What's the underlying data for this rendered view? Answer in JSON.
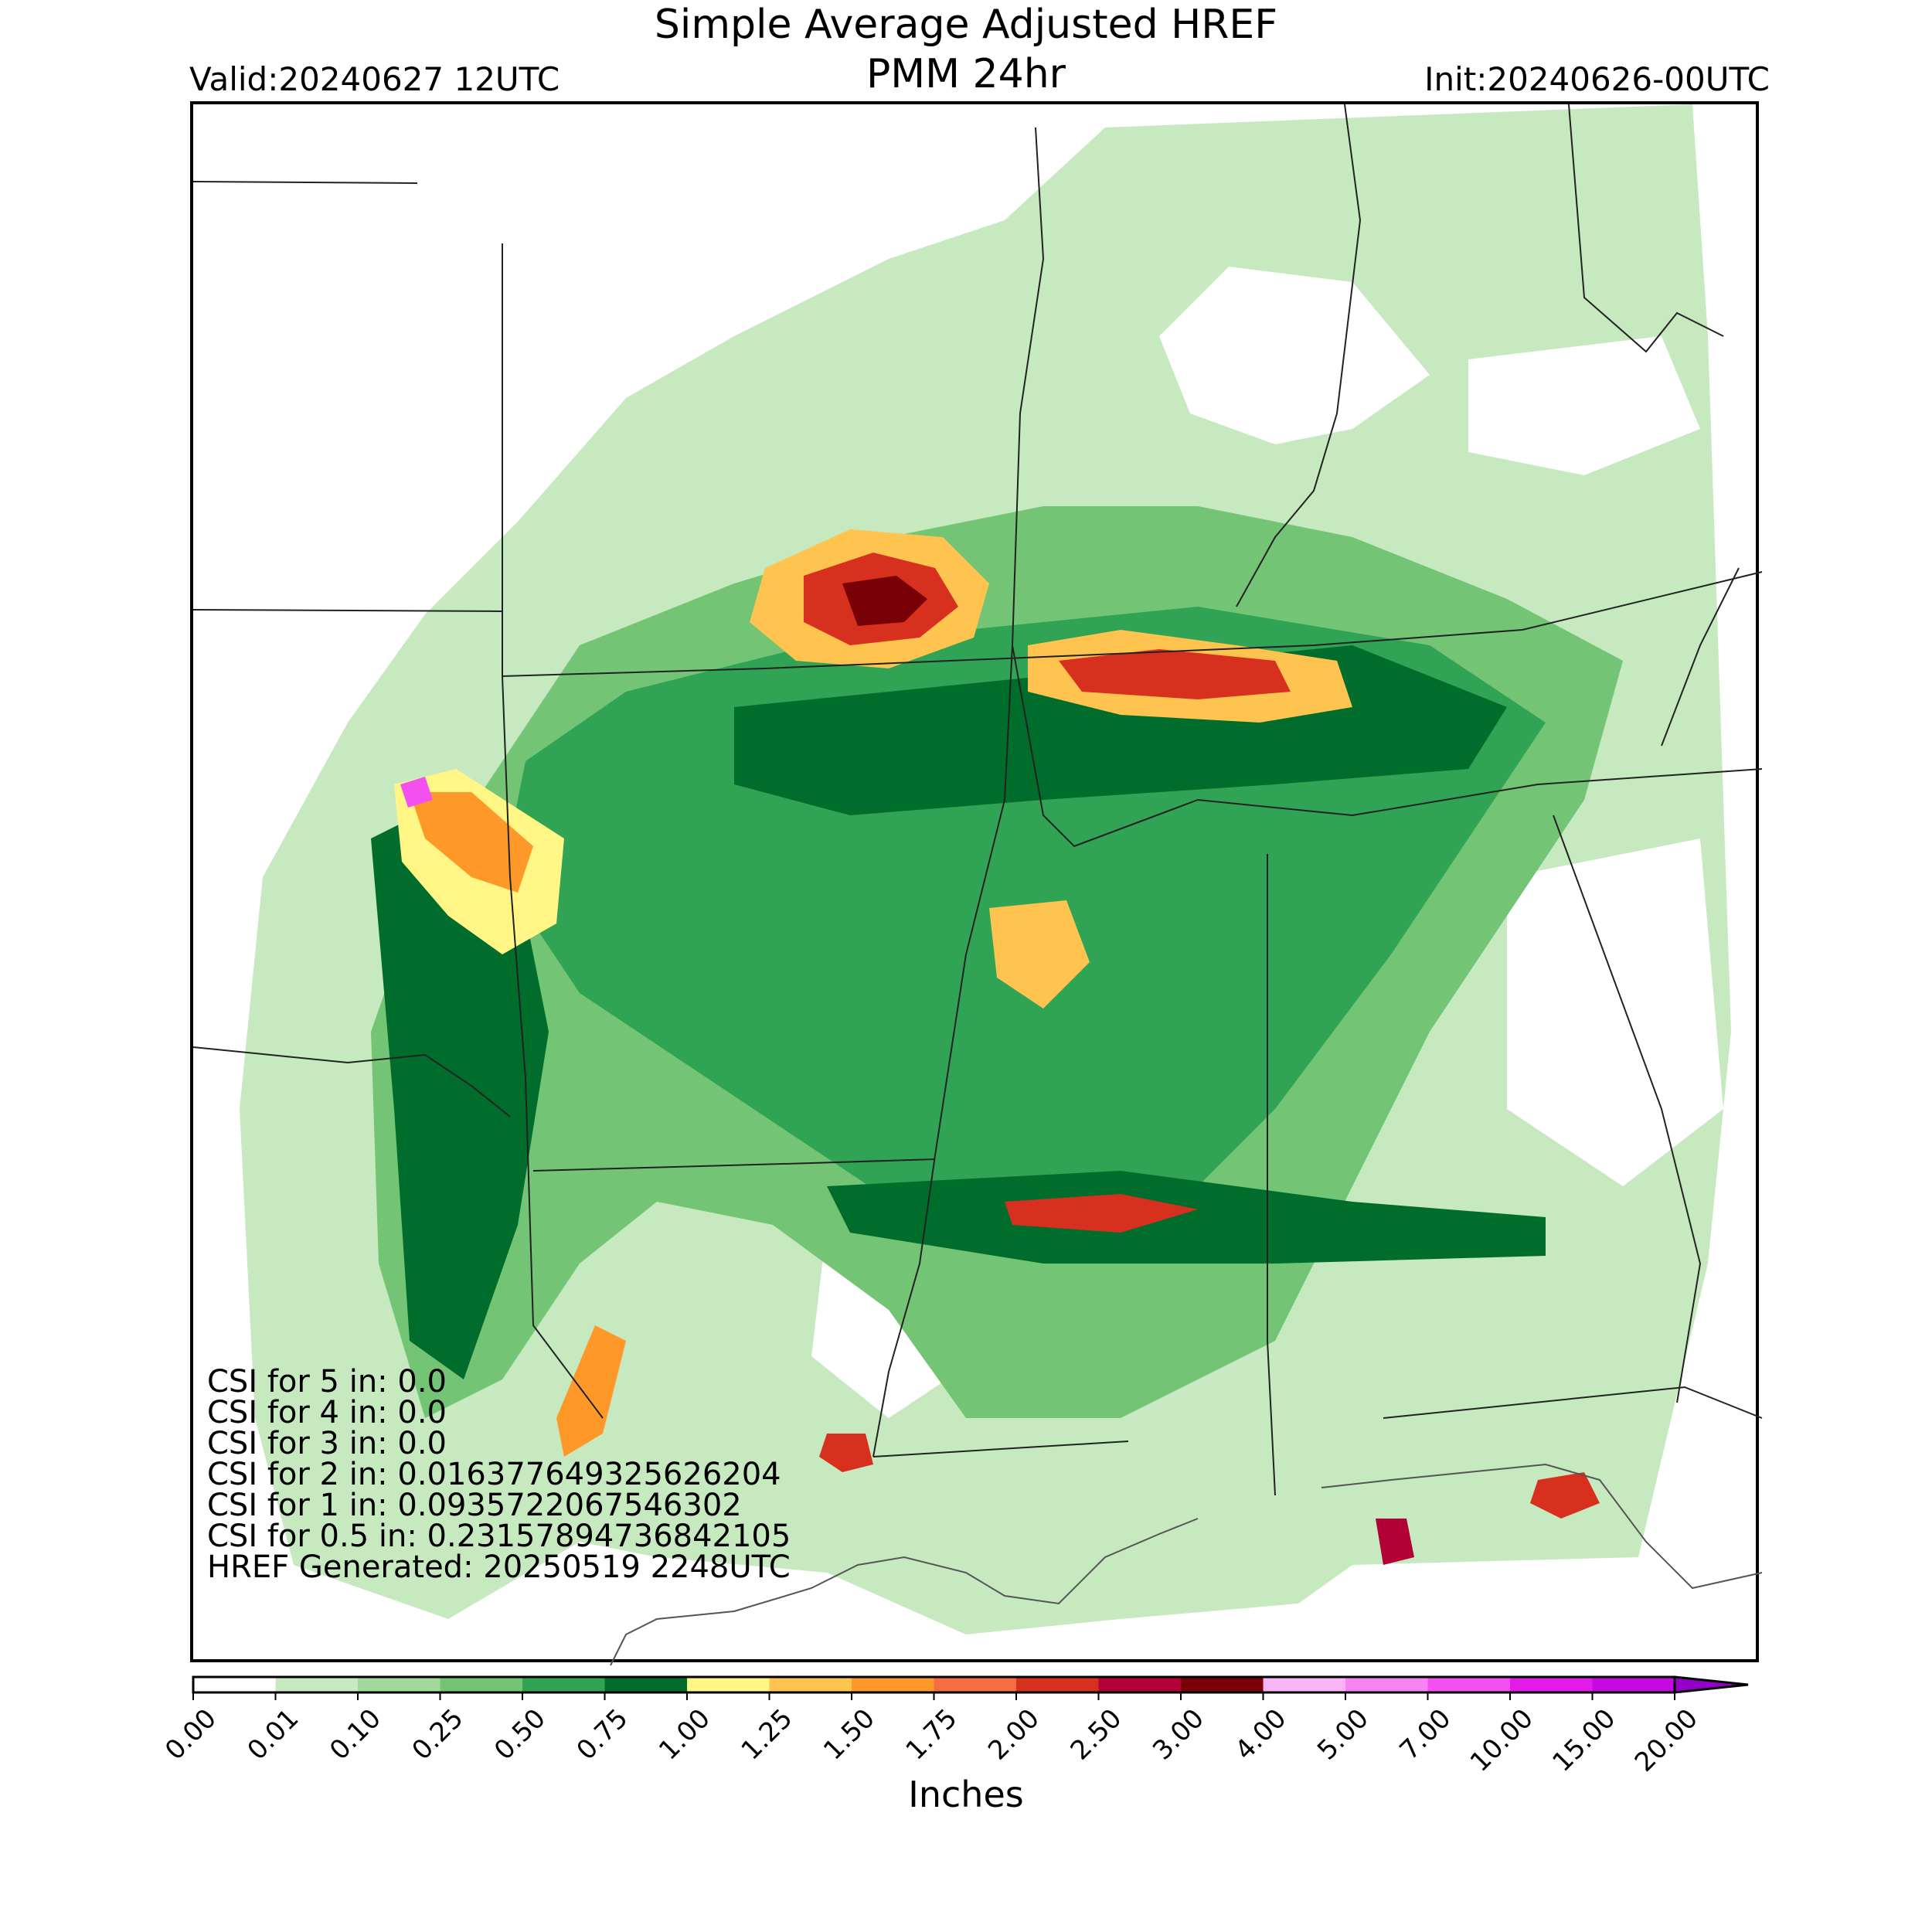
{
  "header": {
    "title_line1": "Simple Average Adjusted HREF",
    "title_line2": "PMM 24hr",
    "valid": "Valid:20240627 12UTC",
    "init": "Init:20240626-00UTC"
  },
  "stats": [
    "CSI for 5 in: 0.0",
    "CSI for 4 in: 0.0",
    "CSI for 3 in: 0.0",
    "CSI for 2 in: 0.016377649325626204",
    "CSI for 1 in: 0.0935722067546302",
    "CSI for 0.5 in: 0.23157894736842105",
    "HREF Generated: 20250519 2248UTC"
  ],
  "colorbar": {
    "label": "Inches",
    "ticks": [
      "0.00",
      "0.01",
      "0.10",
      "0.25",
      "0.50",
      "0.75",
      "1.00",
      "1.25",
      "1.50",
      "1.75",
      "2.00",
      "2.50",
      "3.00",
      "4.00",
      "5.00",
      "7.00",
      "10.00",
      "15.00",
      "20.00"
    ],
    "colors": [
      "#ffffff",
      "#c7e9c0",
      "#a1d99b",
      "#74c476",
      "#31a354",
      "#006d2c",
      "#fff685",
      "#fec44f",
      "#fe9929",
      "#f46d43",
      "#d7301f",
      "#b30036",
      "#7a0007",
      "#f9b4f5",
      "#f783f2",
      "#f351ef",
      "#e21be8",
      "#c609e0",
      "#9500c8"
    ]
  },
  "map": {
    "precip_levels": {
      "light": "#c7e9c0",
      "light_med": "#a1d99b",
      "med": "#74c476",
      "med_heavy": "#31a354",
      "heavy": "#006d2c",
      "yellow": "#fff685",
      "orange": "#fec44f",
      "dark_orange": "#fe9929",
      "red": "#d7301f",
      "dark_red": "#b30036",
      "maroon": "#7a0007",
      "pink": "#f351ef"
    }
  }
}
